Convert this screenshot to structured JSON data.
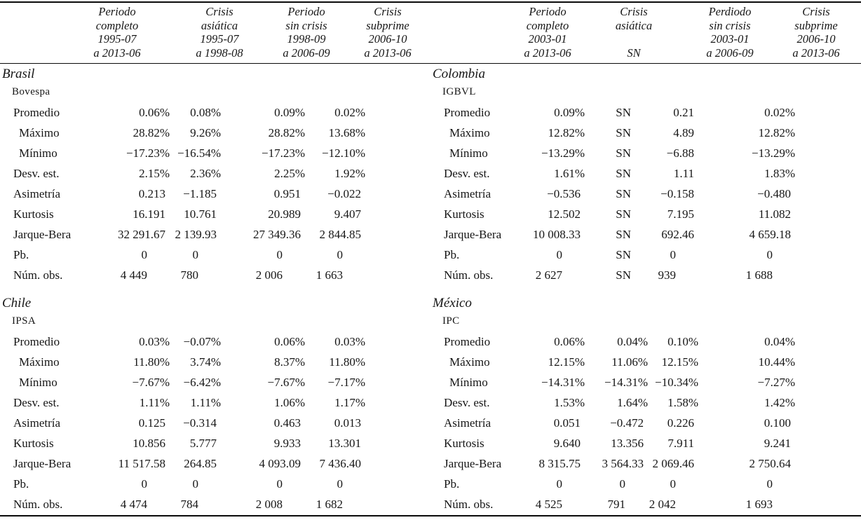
{
  "panels": [
    {
      "header": {
        "cols": [
          {
            "lines": [
              "Periodo",
              "completo",
              "1995-07",
              "a 2013-06"
            ]
          },
          {
            "lines": [
              "Crisis",
              "asiática",
              "1995-07",
              "a 1998-08"
            ]
          },
          {
            "lines": [
              "Periodo",
              "sin crisis",
              "1998-09",
              "a 2006-09"
            ]
          },
          {
            "lines": [
              "Crisis",
              "subprime",
              "2006-10",
              "a 2013-06"
            ]
          }
        ]
      },
      "sections": [
        {
          "country": "Brasil",
          "index": "Bovespa",
          "rows": [
            {
              "label": "Promedio",
              "indent": 1,
              "values": [
                "0.06%",
                "0.08%",
                "0.09%",
                "0.02%"
              ]
            },
            {
              "label": "Máximo",
              "indent": 2,
              "values": [
                "28.82%",
                "9.26%",
                "28.82%",
                "13.68%"
              ]
            },
            {
              "label": "Mínimo",
              "indent": 2,
              "values": [
                "−17.23%",
                "−16.54%",
                "−17.23%",
                "−12.10%"
              ]
            },
            {
              "label": "Desv. est.",
              "indent": 1,
              "values": [
                "2.15%",
                "2.36%",
                "2.25%",
                "1.92%"
              ]
            },
            {
              "label": "Asimetría",
              "indent": 1,
              "values": [
                "0.213",
                "−1.185",
                "0.951",
                "−0.022"
              ]
            },
            {
              "label": "Kurtosis",
              "indent": 1,
              "values": [
                "16.191",
                "10.761",
                "20.989",
                "9.407"
              ]
            },
            {
              "label": "Jarque-Bera",
              "indent": 1,
              "values": [
                "32 291.67",
                "2 139.93",
                "27 349.36",
                "2 844.85"
              ]
            },
            {
              "label": "Pb.",
              "indent": 1,
              "values": [
                "0",
                "0",
                "0",
                "0"
              ]
            },
            {
              "label": "Núm. obs.",
              "indent": 1,
              "values": [
                "4 449",
                "780",
                "2 006",
                "1 663"
              ]
            }
          ]
        },
        {
          "country": "Chile",
          "index": "IPSA",
          "rows": [
            {
              "label": "Promedio",
              "indent": 1,
              "values": [
                "0.03%",
                "−0.07%",
                "0.06%",
                "0.03%"
              ]
            },
            {
              "label": "Máximo",
              "indent": 2,
              "values": [
                "11.80%",
                "3.74%",
                "8.37%",
                "11.80%"
              ]
            },
            {
              "label": "Mínimo",
              "indent": 2,
              "values": [
                "−7.67%",
                "−6.42%",
                "−7.67%",
                "−7.17%"
              ]
            },
            {
              "label": "Desv. est.",
              "indent": 1,
              "values": [
                "1.11%",
                "1.11%",
                "1.06%",
                "1.17%"
              ]
            },
            {
              "label": "Asimetría",
              "indent": 1,
              "values": [
                "0.125",
                "−0.314",
                "0.463",
                "0.013"
              ]
            },
            {
              "label": "Kurtosis",
              "indent": 1,
              "values": [
                "10.856",
                "5.777",
                "9.933",
                "13.301"
              ]
            },
            {
              "label": "Jarque-Bera",
              "indent": 1,
              "values": [
                "11 517.58",
                "264.85",
                "4 093.09",
                "7 436.40"
              ]
            },
            {
              "label": "Pb.",
              "indent": 1,
              "values": [
                "0",
                "0",
                "0",
                "0"
              ]
            },
            {
              "label": "Núm. obs.",
              "indent": 1,
              "values": [
                "4 474",
                "784",
                "2 008",
                "1 682"
              ]
            }
          ]
        }
      ]
    },
    {
      "header": {
        "cols": [
          {
            "lines": [
              "Periodo",
              "completo",
              "2003-01",
              "a 2013-06"
            ]
          },
          {
            "lines": [
              "Crisis",
              "asiática",
              "",
              "SN"
            ]
          },
          {
            "lines": [
              "Perdiodo",
              "sin crisis",
              "2003-01",
              "a 2006-09"
            ]
          },
          {
            "lines": [
              "Crisis",
              "subprime",
              "2006-10",
              "a 2013-06"
            ]
          }
        ]
      },
      "sections": [
        {
          "country": "Colombia",
          "index": "IGBVL",
          "rows": [
            {
              "label": "Promedio",
              "indent": 1,
              "values": [
                "0.09%",
                "SN",
                "0.21",
                "0.02%"
              ]
            },
            {
              "label": "Máximo",
              "indent": 2,
              "values": [
                "12.82%",
                "SN",
                "4.89",
                "12.82%"
              ]
            },
            {
              "label": "Mínimo",
              "indent": 2,
              "values": [
                "−13.29%",
                "SN",
                "−6.88",
                "−13.29%"
              ]
            },
            {
              "label": "Desv. est.",
              "indent": 1,
              "values": [
                "1.61%",
                "SN",
                "1.11",
                "1.83%"
              ]
            },
            {
              "label": "Asimetría",
              "indent": 1,
              "values": [
                "−0.536",
                "SN",
                "−0.158",
                "−0.480"
              ]
            },
            {
              "label": "Kurtosis",
              "indent": 1,
              "values": [
                "12.502",
                "SN",
                "7.195",
                "11.082"
              ]
            },
            {
              "label": "Jarque-Bera",
              "indent": 1,
              "values": [
                "10 008.33",
                "SN",
                "692.46",
                "4 659.18"
              ]
            },
            {
              "label": "Pb.",
              "indent": 1,
              "values": [
                "0",
                "SN",
                "0",
                "0"
              ]
            },
            {
              "label": "Núm. obs.",
              "indent": 1,
              "values": [
                "2 627",
                "SN",
                "939",
                "1 688"
              ]
            }
          ]
        },
        {
          "country": "México",
          "index": "IPC",
          "rows": [
            {
              "label": "Promedio",
              "indent": 1,
              "values": [
                "0.06%",
                "0.04%",
                "0.10%",
                "0.04%"
              ]
            },
            {
              "label": "Máximo",
              "indent": 2,
              "values": [
                "12.15%",
                "11.06%",
                "12.15%",
                "10.44%"
              ]
            },
            {
              "label": "Mínimo",
              "indent": 2,
              "values": [
                "−14.31%",
                "−14.31%",
                "−10.34%",
                "−7.27%"
              ]
            },
            {
              "label": "Desv. est.",
              "indent": 1,
              "values": [
                "1.53%",
                "1.64%",
                "1.58%",
                "1.42%"
              ]
            },
            {
              "label": "Asimetría",
              "indent": 1,
              "values": [
                "0.051",
                "−0.472",
                "0.226",
                "0.100"
              ]
            },
            {
              "label": "Kurtosis",
              "indent": 1,
              "values": [
                "9.640",
                "13.356",
                "7.911",
                "9.241"
              ]
            },
            {
              "label": "Jarque-Bera",
              "indent": 1,
              "values": [
                "8 315.75",
                "3 564.33",
                "2 069.46",
                "2 750.64"
              ]
            },
            {
              "label": "Pb.",
              "indent": 1,
              "values": [
                "0",
                "0",
                "0",
                "0"
              ]
            },
            {
              "label": "Núm. obs.",
              "indent": 1,
              "values": [
                "4 525",
                "791",
                "2 042",
                "1 693"
              ]
            }
          ]
        }
      ]
    }
  ]
}
